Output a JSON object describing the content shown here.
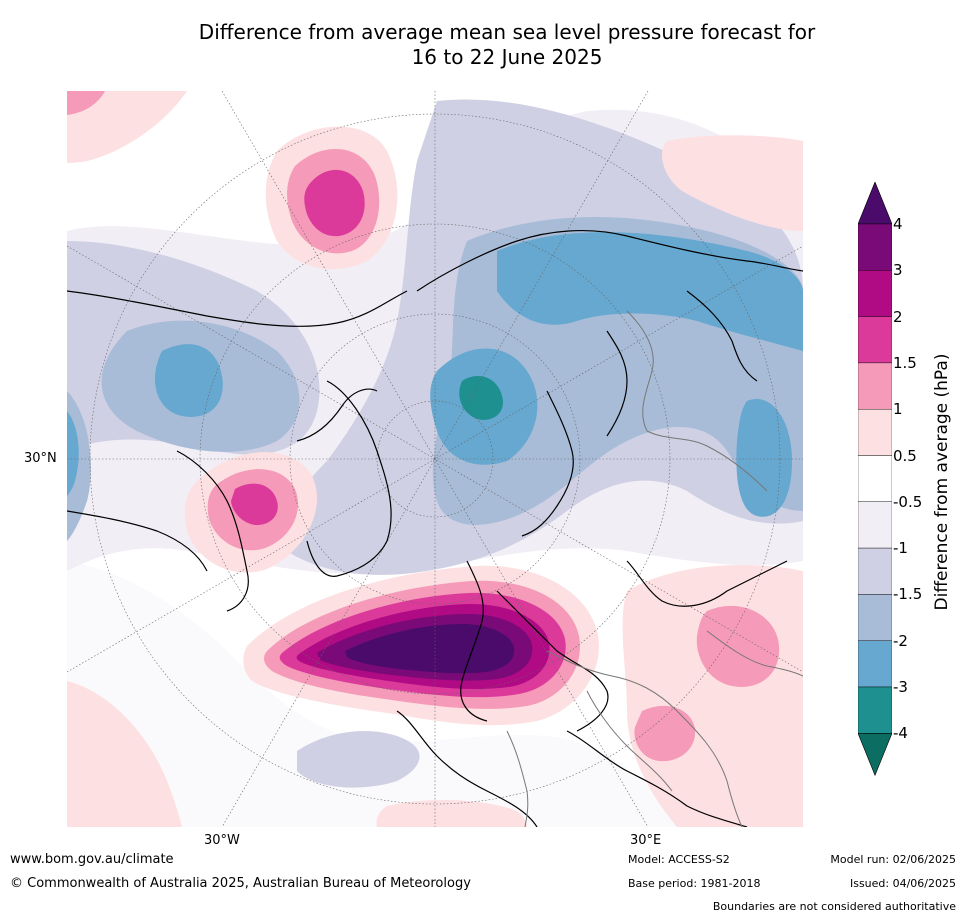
{
  "title": {
    "line1": "Difference from average mean sea level pressure forecast for",
    "line2": "16 to 22 June 2025"
  },
  "axis_labels": {
    "lat_30n": "30°N",
    "lon_30w": "30°W",
    "lon_30e": "30°E"
  },
  "colorbar": {
    "label": "Difference from average (hPa)",
    "ticks": [
      "4",
      "3",
      "2",
      "1.5",
      "1",
      "0.5",
      "-0.5",
      "-1",
      "-1.5",
      "-2",
      "-3",
      "-4"
    ],
    "colors": [
      "#4a0b6b",
      "#7a0a78",
      "#b00a84",
      "#dc3a9a",
      "#f59ab8",
      "#fde0e2",
      "#ffffff",
      "#f2eef5",
      "#d0d0e4",
      "#a8bcd8",
      "#66a8d0",
      "#1e9090",
      "#0c6e62"
    ]
  },
  "footer": {
    "website": "www.bom.gov.au/climate",
    "copyright": "© Commonwealth of Australia 2025, Australian Bureau of Meteorology",
    "model": "Model: ACCESS-S2",
    "base_period": "Base period: 1981-2018",
    "model_run": "Model run: 02/06/2025",
    "issued": "Issued: 04/06/2025",
    "disclaimer": "Boundaries are not considered authoritative"
  }
}
